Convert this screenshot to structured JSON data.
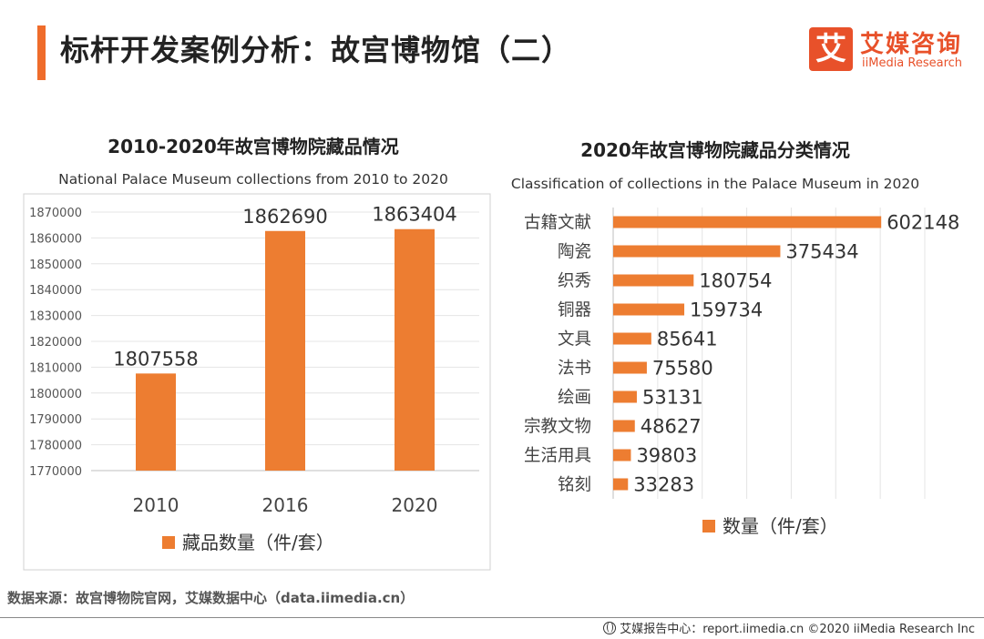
{
  "header": {
    "title": "标杆开发案例分析：故宫博物馆（二）",
    "logo_mark": "艾",
    "logo_cn": "艾媒咨询",
    "logo_en": "iiMedia Research"
  },
  "chart_data": [
    {
      "type": "bar",
      "title": "2010-2020年故宫博物院藏品情况",
      "subtitle": "National Palace Museum collections from 2010  to 2020",
      "categories": [
        "2010",
        "2016",
        "2020"
      ],
      "series": [
        {
          "name": "藏品数量（件/套）",
          "values": [
            1807558,
            1862690,
            1863404
          ]
        }
      ],
      "ylim": [
        1770000,
        1870000
      ],
      "yticks": [
        1770000,
        1780000,
        1790000,
        1800000,
        1810000,
        1820000,
        1830000,
        1840000,
        1850000,
        1860000,
        1870000
      ],
      "grid": true,
      "legend": "bottom",
      "color": "#ed7d31"
    },
    {
      "type": "bar",
      "orientation": "horizontal",
      "title": "2020年故宫博物院藏品分类情况",
      "subtitle": "Classification of collections in the Palace Museum in 2020",
      "categories": [
        "古籍文献",
        "陶瓷",
        "织秀",
        "铜器",
        "文具",
        "法书",
        "绘画",
        "宗教文物",
        "生活用具",
        "铭刻"
      ],
      "series": [
        {
          "name": "数量（件/套）",
          "values": [
            602148,
            375434,
            180754,
            159734,
            85641,
            75580,
            53131,
            48627,
            39803,
            33283
          ]
        }
      ],
      "xlim": [
        0,
        700000
      ],
      "grid": true,
      "legend": "bottom",
      "color": "#ed7d31"
    }
  ],
  "footer": {
    "source": "数据来源：故宫博物院官网，艾媒数据中心（data.iimedia.cn）",
    "copyright": "艾媒报告中心：report.iimedia.cn  ©2020  iiMedia Research  Inc"
  }
}
